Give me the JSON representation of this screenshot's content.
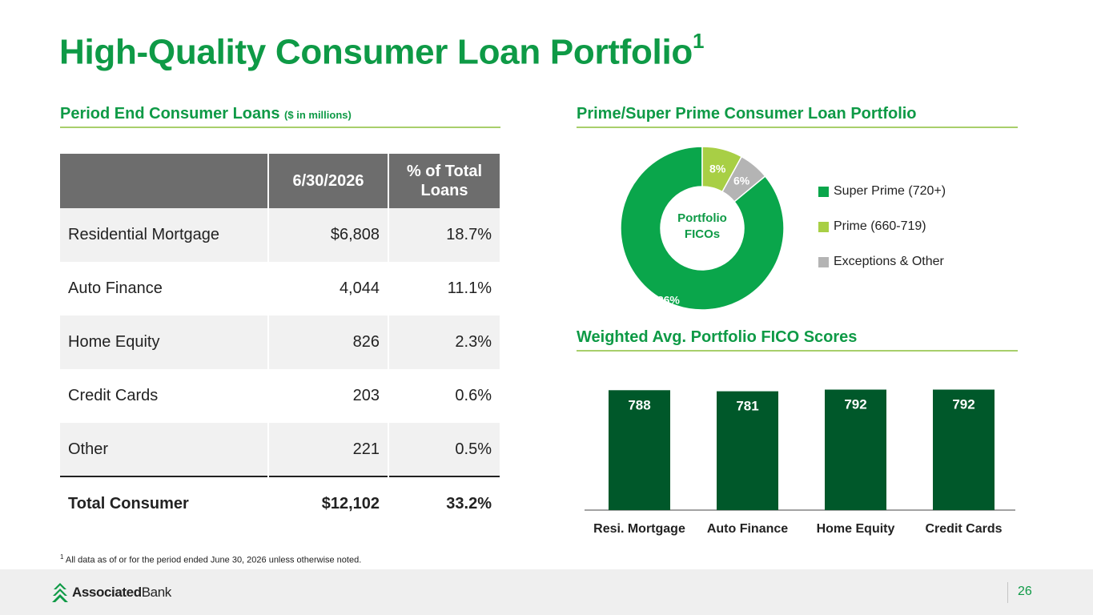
{
  "title": "High-Quality Consumer Loan Portfolio",
  "title_sup": "1",
  "loans": {
    "heading": "Period End Consumer Loans",
    "heading_note": "($ in millions)",
    "columns": [
      "",
      "6/30/2026",
      "% of Total Loans"
    ],
    "rows": [
      {
        "label": "Residential Mortgage",
        "value": "$6,808",
        "pct": "18.7%"
      },
      {
        "label": "Auto Finance",
        "value": "4,044",
        "pct": "11.1%"
      },
      {
        "label": "Home Equity",
        "value": "826",
        "pct": "2.3%"
      },
      {
        "label": "Credit Cards",
        "value": "203",
        "pct": "0.6%"
      },
      {
        "label": "Other",
        "value": "221",
        "pct": "0.5%"
      }
    ],
    "total": {
      "label": "Total Consumer",
      "value": "$12,102",
      "pct": "33.2%"
    }
  },
  "prime": {
    "heading": "Prime/Super Prime Consumer Loan Portfolio",
    "center_label": "Portfolio\nFICOs",
    "legend": [
      "Super Prime (720+)",
      "Prime (660-719)",
      "Exceptions & Other"
    ]
  },
  "fico": {
    "heading": "Weighted Avg. Portfolio FICO Scores"
  },
  "chart_data": [
    {
      "type": "pie",
      "title": "Prime/Super Prime Consumer Loan Portfolio",
      "center_label": "Portfolio FICOs",
      "categories": [
        "Super Prime (720+)",
        "Prime (660-719)",
        "Exceptions & Other"
      ],
      "values": [
        86,
        8,
        6
      ],
      "labels": [
        "86%",
        "8%",
        "6%"
      ],
      "colors": [
        "#0aa64b",
        "#a8cf45",
        "#b4b4b4"
      ],
      "legend_position": "right"
    },
    {
      "type": "bar",
      "title": "Weighted Avg. Portfolio FICO Scores",
      "categories": [
        "Resi. Mortgage",
        "Auto Finance",
        "Home Equity",
        "Credit Cards"
      ],
      "values": [
        788,
        781,
        792,
        792
      ],
      "color": "#00582a",
      "grid": false
    }
  ],
  "footnote": {
    "marker": "1",
    "text": "All data as of or for the period ended June 30, 2026 unless otherwise noted."
  },
  "footer": {
    "logo_bold": "Associated",
    "logo_regular": "Bank",
    "page": "26"
  },
  "colors": {
    "brand_green": "#0e9a46",
    "accent_line": "#a8cf6b",
    "table_header": "#6d6d6d",
    "bar": "#00582a"
  }
}
